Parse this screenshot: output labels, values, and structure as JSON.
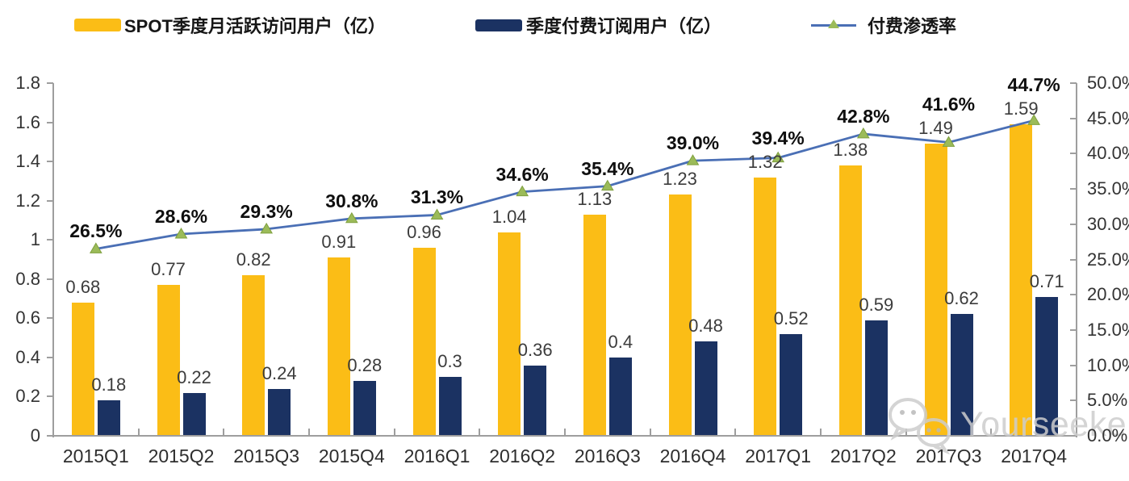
{
  "legend": {
    "items": [
      {
        "label": "SPOT季度月活跃访问用户（亿）",
        "color": "#FBBD16"
      },
      {
        "label": "季度付费订阅用户（亿）",
        "color": "#1B3262"
      },
      {
        "label": "付费渗透率",
        "line_color": "#4A6FB5",
        "marker_color": "#9BBB59"
      }
    ]
  },
  "chart_data": {
    "type": "bar+line",
    "categories": [
      "2015Q1",
      "2015Q2",
      "2015Q3",
      "2015Q4",
      "2016Q1",
      "2016Q2",
      "2016Q3",
      "2016Q4",
      "2017Q1",
      "2017Q2",
      "2017Q3",
      "2017Q4"
    ],
    "series": [
      {
        "name": "SPOT季度月活跃访问用户（亿）",
        "type": "bar",
        "axis": "left",
        "color": "#FBBD16",
        "values": [
          0.68,
          0.77,
          0.82,
          0.91,
          0.96,
          1.04,
          1.13,
          1.23,
          1.32,
          1.38,
          1.49,
          1.59
        ],
        "labels": [
          "0.68",
          "0.77",
          "0.82",
          "0.91",
          "0.96",
          "1.04",
          "1.13",
          "1.23",
          "1.32",
          "1.38",
          "1.49",
          "1.59"
        ]
      },
      {
        "name": "季度付费订阅用户（亿）",
        "type": "bar",
        "axis": "left",
        "color": "#1B3262",
        "values": [
          0.18,
          0.22,
          0.24,
          0.28,
          0.3,
          0.36,
          0.4,
          0.48,
          0.52,
          0.59,
          0.62,
          0.71
        ],
        "labels": [
          "0.18",
          "0.22",
          "0.24",
          "0.28",
          "0.3",
          "0.36",
          "0.4",
          "0.48",
          "0.52",
          "0.59",
          "0.62",
          "0.71"
        ]
      },
      {
        "name": "付费渗透率",
        "type": "line",
        "axis": "right",
        "color": "#4A6FB5",
        "marker": "triangle",
        "marker_color": "#9BBB59",
        "marker_edge_color": "#7FA03E",
        "values": [
          26.5,
          28.6,
          29.3,
          30.8,
          31.3,
          34.6,
          35.4,
          39.0,
          39.4,
          42.8,
          41.6,
          44.7
        ],
        "labels": [
          "26.5%",
          "28.6%",
          "29.3%",
          "30.8%",
          "31.3%",
          "34.6%",
          "35.4%",
          "39.0%",
          "39.4%",
          "42.8%",
          "41.6%",
          "44.7%"
        ]
      }
    ],
    "left_axis": {
      "min": 0,
      "max": 1.8,
      "tick_labels": [
        "1.8",
        "1.6",
        "1.4",
        "1.2",
        "1",
        "0.8",
        "0.6",
        "0.4",
        "0.2",
        "0"
      ]
    },
    "right_axis": {
      "min": 0,
      "max": 50,
      "tick_labels": [
        "50.0%",
        "45.0%",
        "40.0%",
        "35.0%",
        "30.0%",
        "25.0%",
        "20.0%",
        "15.0%",
        "10.0%",
        "5.0%",
        "0.0%"
      ]
    },
    "grid": false,
    "legend_position": "top"
  },
  "watermark": {
    "text": "Yourseeker",
    "icon": "wechat-icon"
  }
}
